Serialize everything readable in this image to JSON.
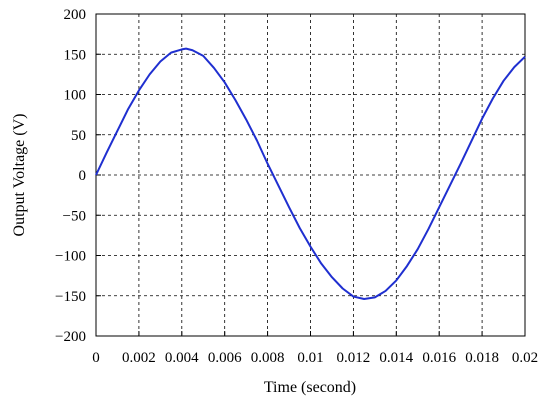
{
  "chart_data": {
    "type": "line",
    "title": "",
    "xlabel": "Time (second)",
    "ylabel": "Output Voltage (V)",
    "xlim": [
      0,
      0.02
    ],
    "ylim": [
      -200,
      200
    ],
    "grid": true,
    "x_ticks": [
      0,
      0.002,
      0.004,
      0.006,
      0.008,
      0.01,
      0.012,
      0.014,
      0.016,
      0.018,
      0.02
    ],
    "x_tick_labels": [
      "0",
      "0.002",
      "0.004",
      "0.006",
      "0.008",
      "0.01",
      "0.012",
      "0.014",
      "0.016",
      "0.018",
      "0.02"
    ],
    "y_ticks": [
      200,
      150,
      100,
      50,
      0,
      -50,
      -100,
      -150,
      -200
    ],
    "y_tick_labels": [
      "200",
      "150",
      "100",
      "50",
      "0",
      "−50",
      "−100",
      "−150",
      "−200"
    ],
    "series": [
      {
        "color": "#1f2fd0",
        "x": [
          0,
          0.0005,
          0.001,
          0.0015,
          0.002,
          0.0025,
          0.003,
          0.0035,
          0.004,
          0.0042,
          0.0045,
          0.005,
          0.0055,
          0.006,
          0.0065,
          0.007,
          0.0075,
          0.008,
          0.0085,
          0.009,
          0.0095,
          0.01,
          0.0105,
          0.011,
          0.0115,
          0.012,
          0.0125,
          0.013,
          0.0135,
          0.014,
          0.0145,
          0.015,
          0.0155,
          0.016,
          0.0165,
          0.017,
          0.0175,
          0.018,
          0.0185,
          0.019,
          0.0195,
          0.02
        ],
        "y": [
          0,
          28,
          55,
          82,
          105,
          125,
          141,
          152,
          156,
          157,
          155,
          148,
          133,
          115,
          93,
          69,
          43,
          14,
          -13,
          -40,
          -66,
          -89,
          -110,
          -127,
          -141,
          -151,
          -154,
          -152,
          -144,
          -131,
          -113,
          -92,
          -67,
          -40,
          -13,
          14,
          42,
          70,
          95,
          117,
          134,
          147
        ]
      }
    ]
  }
}
